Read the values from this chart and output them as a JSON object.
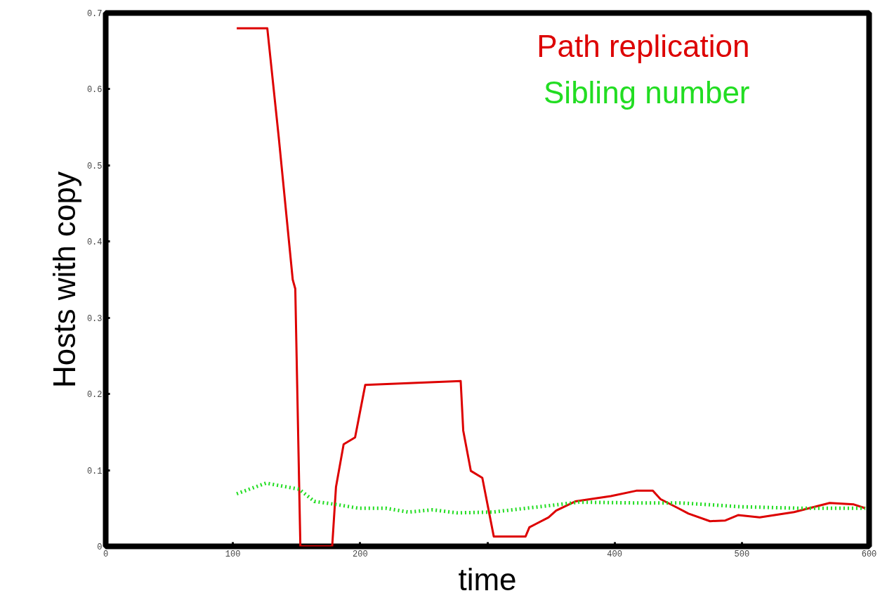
{
  "chart_data": {
    "type": "line",
    "xlabel": "time",
    "ylabel": "Hosts with copy",
    "xlim": [
      0,
      600
    ],
    "ylim": [
      0,
      0.7
    ],
    "xticks": [
      0,
      100,
      200,
      {
        "value": 300,
        "label": null
      },
      400,
      500,
      600
    ],
    "yticks": [
      0,
      0.1,
      0.2,
      0.3,
      0.4,
      0.5,
      0.6,
      0.7
    ],
    "grid": false,
    "legend": "top right",
    "series": [
      {
        "name": "Path replication",
        "color": "#dd0000",
        "line_style": "solid",
        "x": [
          103,
          127,
          136,
          147,
          149,
          153,
          178,
          181,
          187,
          196,
          204,
          279,
          281,
          287,
          296,
          305,
          330,
          333,
          348,
          354,
          369,
          397,
          417,
          430,
          436,
          450,
          458,
          475,
          487,
          497,
          514,
          541,
          569,
          588,
          597
        ],
        "values": [
          0.68,
          0.68,
          0.537,
          0.35,
          0.338,
          0,
          0,
          0.078,
          0.134,
          0.143,
          0.212,
          0.217,
          0.152,
          0.099,
          0.09,
          0.013,
          0.013,
          0.025,
          0.038,
          0.047,
          0.059,
          0.066,
          0.073,
          0.073,
          0.062,
          0.05,
          0.043,
          0.033,
          0.034,
          0.041,
          0.038,
          0.045,
          0.057,
          0.055,
          0.05
        ]
      },
      {
        "name": "Sibling number",
        "color": "#22dd22",
        "line_style": "dotted",
        "x": [
          103,
          126,
          152,
          164,
          181,
          199,
          220,
          238,
          257,
          276,
          304,
          341,
          372,
          415,
          452,
          499,
          545,
          597
        ],
        "values": [
          0.069,
          0.083,
          0.075,
          0.059,
          0.055,
          0.05,
          0.05,
          0.045,
          0.048,
          0.044,
          0.045,
          0.052,
          0.058,
          0.057,
          0.057,
          0.052,
          0.05,
          0.05
        ]
      }
    ]
  }
}
